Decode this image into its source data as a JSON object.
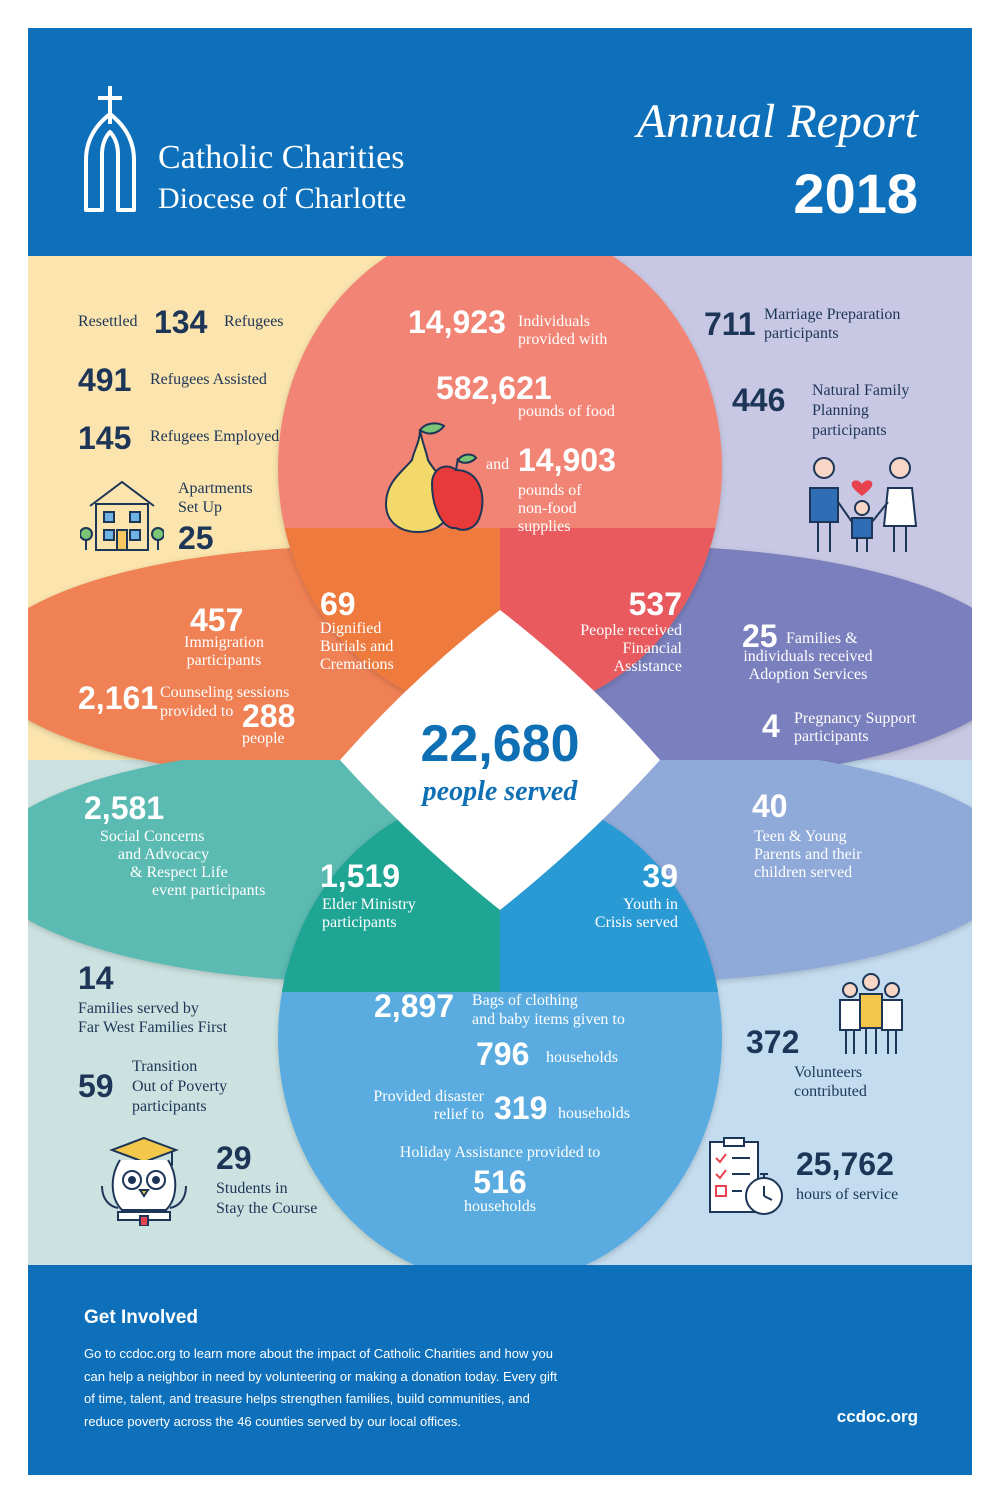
{
  "header": {
    "org_line1": "Catholic Charities",
    "org_line2": "Diocese of Charlotte",
    "report_title": "Annual Report",
    "report_year": "2018"
  },
  "colors": {
    "header_blue": "#0e70bb",
    "navy_text": "#1d3557",
    "refugee_yellow": "#fbe4ad",
    "family_lavender": "#c8c8e4",
    "food_coral": "#f18474",
    "orange_petal": "#ef8154",
    "red_petal": "#e85a5d",
    "adoption_purple": "#7a7fbd",
    "teal_petal": "#5bbab1",
    "dark_teal": "#1ea594",
    "light_blue": "#8fa9d8",
    "youth_blue": "#2a9ad4",
    "sky_blue": "#5aace0",
    "pale_mint": "#cce2e0",
    "pale_blue": "#c4dcef"
  },
  "center": {
    "value": "22,680",
    "label": "people served"
  },
  "refugees": {
    "resettled_pre": "Resettled",
    "resettled_value": "134",
    "resettled_post": "Refugees",
    "assisted_value": "491",
    "assisted_label": "Refugees Assisted",
    "employed_value": "145",
    "employed_label": "Refugees Employed",
    "apartments_label_1": "Apartments",
    "apartments_label_2": "Set Up",
    "apartments_value": "25",
    "icon": "house-icon"
  },
  "food": {
    "individuals_value": "14,923",
    "individuals_label_1": "Individuals",
    "individuals_label_2": "provided with",
    "pounds_value": "582,621",
    "pounds_label": "pounds of food",
    "and_label": "and",
    "supplies_value": "14,903",
    "supplies_label_1": "pounds of",
    "supplies_label_2": "non-food",
    "supplies_label_3": "supplies",
    "icon": "pear-apple-icon"
  },
  "marriage": {
    "prep_value": "711",
    "prep_label_1": "Marriage Preparation",
    "prep_label_2": "participants",
    "nfp_value": "446",
    "nfp_label_1": "Natural Family",
    "nfp_label_2": "Planning",
    "nfp_label_3": "participants",
    "icon": "family-heart-icon"
  },
  "immigration": {
    "immigration_value": "457",
    "immigration_label_1": "Immigration",
    "immigration_label_2": "participants",
    "counseling_value": "2,161",
    "counseling_label_1": "Counseling sessions",
    "counseling_label_2": "provided to",
    "counseling_people_value": "288",
    "counseling_people_label": "people"
  },
  "burials": {
    "value": "69",
    "label_1": "Dignified",
    "label_2": "Burials and",
    "label_3": "Cremations"
  },
  "financial": {
    "value": "537",
    "label_1": "People received",
    "label_2": "Financial",
    "label_3": "Assistance"
  },
  "adoption": {
    "value": "25",
    "label_1": "Families &",
    "label_2": "individuals received",
    "label_3": "Adoption Services",
    "pregnancy_value": "4",
    "pregnancy_label_1": "Pregnancy Support",
    "pregnancy_label_2": "participants"
  },
  "social": {
    "value": "2,581",
    "label_1": "Social Concerns",
    "label_2": "and Advocacy",
    "label_3": "& Respect Life",
    "label_4": "event participants"
  },
  "elder": {
    "value": "1,519",
    "label_1": "Elder Ministry",
    "label_2": "participants"
  },
  "youth": {
    "value": "39",
    "label_1": "Youth in",
    "label_2": "Crisis served"
  },
  "teen": {
    "value": "40",
    "label_1": "Teen & Young",
    "label_2": "Parents and their",
    "label_3": "children served"
  },
  "families_first": {
    "value": "14",
    "label_1": "Families served by",
    "label_2": "Far West Families First",
    "transition_value": "59",
    "transition_label_1": "Transition",
    "transition_label_2": "Out of Poverty",
    "transition_label_3": "participants",
    "students_value": "29",
    "students_label_1": "Students in",
    "students_label_2": "Stay the Course",
    "icon": "graduate-owl-icon"
  },
  "clothing": {
    "bags_value": "2,897",
    "bags_label_1": "Bags of clothing",
    "bags_label_2": "and baby items given to",
    "bags_households_value": "796",
    "bags_households_label": "households",
    "disaster_label_1": "Provided disaster",
    "disaster_label_2": "relief to",
    "disaster_value": "319",
    "disaster_households_label": "households",
    "holiday_label": "Holiday Assistance provided to",
    "holiday_value": "516",
    "holiday_households_label": "households"
  },
  "volunteers": {
    "value": "372",
    "label_1": "Volunteers",
    "label_2": "contributed",
    "hours_value": "25,762",
    "hours_label": "hours of service",
    "icon_people": "volunteers-group-icon",
    "icon_checklist": "checklist-stopwatch-icon"
  },
  "footer": {
    "heading": "Get Involved",
    "line_1": "Go to ccdoc.org to learn more about the impact of Catholic Charities and how you",
    "line_2": "can help a neighbor in need by volunteering or making a donation today. Every gift",
    "line_3": "of time, talent, and treasure helps strengthen families, build communities, and",
    "line_4": "reduce poverty across the 46 counties served by our local offices.",
    "url": "ccdoc.org"
  }
}
